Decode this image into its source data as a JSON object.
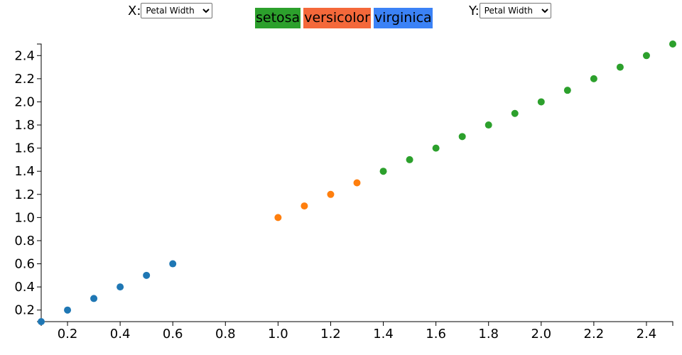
{
  "controls": {
    "x_label": "X:",
    "x_selected": "Petal Width",
    "y_label": "Y:",
    "y_selected": "Petal Width"
  },
  "legend": [
    {
      "label": "setosa",
      "color": "#2ca02c"
    },
    {
      "label": "versicolor",
      "color": "#f4683a"
    },
    {
      "label": "virginica",
      "color": "#3b82f6"
    }
  ],
  "chart_data": {
    "type": "scatter",
    "title": "",
    "xlabel": "",
    "ylabel": "",
    "xlim": [
      0.1,
      2.5
    ],
    "ylim": [
      0.1,
      2.5
    ],
    "x_ticks": [
      "0.2",
      "0.4",
      "0.6",
      "0.8",
      "1.0",
      "1.2",
      "1.4",
      "1.6",
      "1.8",
      "2.0",
      "2.2",
      "2.4"
    ],
    "y_ticks": [
      "0.2",
      "0.4",
      "0.6",
      "0.8",
      "1.0",
      "1.2",
      "1.4",
      "1.6",
      "1.8",
      "2.0",
      "2.2",
      "2.4"
    ],
    "series": [
      {
        "color": "#1f77b4",
        "x": [
          0.1,
          0.2,
          0.3,
          0.4,
          0.5,
          0.6
        ],
        "y": [
          0.1,
          0.2,
          0.3,
          0.4,
          0.5,
          0.6
        ]
      },
      {
        "color": "#ff7f0e",
        "x": [
          1.0,
          1.1,
          1.2,
          1.3
        ],
        "y": [
          1.0,
          1.1,
          1.2,
          1.3
        ]
      },
      {
        "color": "#2ca02c",
        "x": [
          1.4,
          1.5,
          1.6,
          1.7,
          1.8,
          1.9,
          2.0,
          2.1,
          2.2,
          2.3,
          2.4,
          2.5
        ],
        "y": [
          1.4,
          1.5,
          1.6,
          1.7,
          1.8,
          1.9,
          2.0,
          2.1,
          2.2,
          2.3,
          2.4,
          2.5
        ]
      }
    ]
  }
}
